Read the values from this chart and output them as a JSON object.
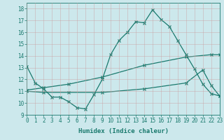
{
  "xlabel": "Humidex (Indice chaleur)",
  "xlim": [
    0,
    23
  ],
  "ylim": [
    9,
    18.5
  ],
  "yticks": [
    9,
    10,
    11,
    12,
    13,
    14,
    15,
    16,
    17,
    18
  ],
  "xticks": [
    0,
    1,
    2,
    3,
    4,
    5,
    6,
    7,
    8,
    9,
    10,
    11,
    12,
    13,
    14,
    15,
    16,
    17,
    18,
    19,
    20,
    21,
    22,
    23
  ],
  "bg_color": "#cce8ec",
  "line_color": "#1a7a6e",
  "grid_color": "#b8d8dc",
  "line1_x": [
    0,
    1,
    2,
    3,
    4,
    5,
    6,
    7,
    8,
    9,
    10,
    11,
    12,
    13,
    14,
    15,
    16,
    17,
    18,
    19,
    20,
    21,
    22,
    23
  ],
  "line1_y": [
    13.1,
    11.7,
    11.2,
    10.5,
    10.5,
    10.1,
    9.6,
    9.5,
    10.7,
    12.0,
    14.1,
    15.3,
    16.0,
    16.9,
    16.8,
    17.9,
    17.1,
    16.5,
    15.3,
    14.1,
    12.9,
    11.6,
    10.8,
    10.6
  ],
  "line2_x": [
    0,
    2,
    5,
    9,
    14,
    19,
    22,
    23
  ],
  "line2_y": [
    11.1,
    11.3,
    11.6,
    12.2,
    13.2,
    13.9,
    14.1,
    14.1
  ],
  "line3_x": [
    0,
    2,
    5,
    9,
    14,
    19,
    21,
    22,
    23
  ],
  "line3_y": [
    11.0,
    10.9,
    10.9,
    10.9,
    11.2,
    11.7,
    12.8,
    11.5,
    10.6
  ]
}
